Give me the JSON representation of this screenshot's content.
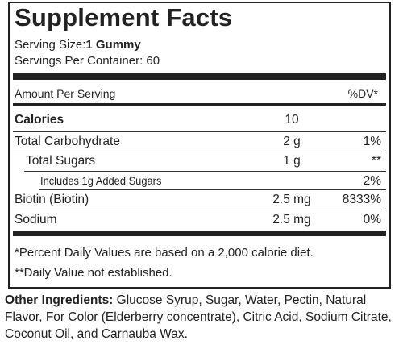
{
  "header": {
    "title": "Supplement Facts",
    "serving_size_label": "Serving Size:",
    "serving_size_value": "1 Gummy",
    "servings_per_container": "Servings Per Container: 60"
  },
  "table": {
    "columns": [
      "Amount Per Serving",
      "%DV*"
    ],
    "rows": [
      {
        "name": "Calories",
        "amount": "10"
      },
      {
        "name": "Total Carbohydrate",
        "amount": "2 g",
        "dv": "1%"
      },
      {
        "name": "Total Sugars",
        "amount": "1 g",
        "dv": "**"
      },
      {
        "name": "Includes 1g Added Sugars",
        "dv": "2%"
      },
      {
        "name": "Biotin (Biotin)",
        "amount": "2.5 mg",
        "dv": "8333%"
      },
      {
        "name": "Sodium",
        "amount": "2.5 mg",
        "dv": "0%"
      }
    ]
  },
  "footnotes": [
    "*Percent Daily Values are based on a 2,000 calorie diet.",
    "**Daily Value not established."
  ],
  "other_ingredients": {
    "label": "Other Ingredients:",
    "text": "Glucose Syrup, Sugar, Water, Pectin, Natural Flavor, For Color (Elderberry concentrate), Citric Acid, Sodium Citrate, Coconut Oil, and Carnauba Wax."
  }
}
